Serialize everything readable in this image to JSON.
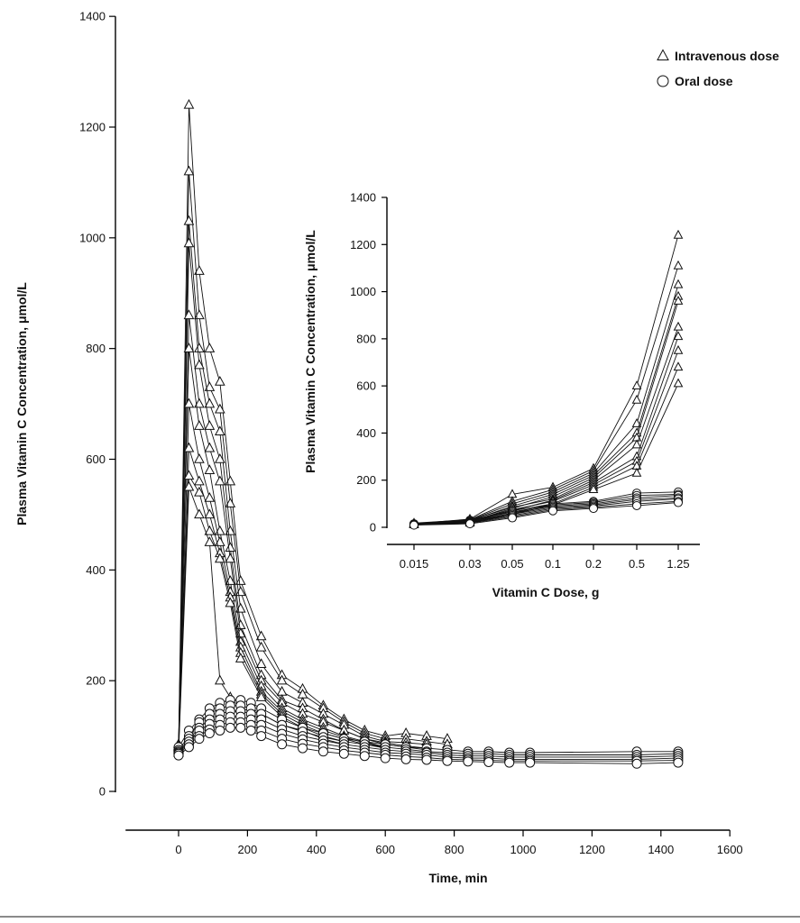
{
  "chart_data": [
    {
      "type": "line",
      "ylabel": "Plasma Vitamin C Concentration, μmol/L",
      "xlabel": "Time, min",
      "xlim": [
        -180,
        1600
      ],
      "ylim": [
        0,
        1400
      ],
      "x_ticks": [
        0,
        200,
        400,
        600,
        800,
        1000,
        1200,
        1400,
        1600
      ],
      "y_ticks": [
        0,
        200,
        400,
        600,
        800,
        1000,
        1200,
        1400
      ],
      "legend_position": "top-right",
      "legend": [
        {
          "marker": "triangle",
          "label": "Intravenous dose"
        },
        {
          "marker": "circle",
          "label": "Oral dose"
        }
      ],
      "series": [
        {
          "marker": "triangle",
          "x": [
            0,
            30,
            60,
            90,
            120,
            150,
            180,
            240,
            300,
            360,
            420,
            480,
            540,
            600,
            660,
            720,
            780
          ],
          "y": [
            80,
            1240,
            940,
            800,
            740,
            560,
            380,
            280,
            210,
            185,
            155,
            130,
            110,
            100,
            105,
            100,
            95
          ]
        },
        {
          "marker": "triangle",
          "x": [
            0,
            30,
            60,
            90,
            120,
            150,
            180,
            240,
            300,
            360,
            420,
            480,
            540,
            600,
            660,
            720,
            780
          ],
          "y": [
            75,
            1120,
            860,
            730,
            690,
            520,
            360,
            260,
            200,
            175,
            150,
            125,
            105,
            95,
            95,
            90,
            85
          ]
        },
        {
          "marker": "triangle",
          "x": [
            0,
            30,
            60,
            90,
            120,
            150,
            180,
            240,
            300,
            360,
            420,
            480,
            540,
            600,
            660,
            720
          ],
          "y": [
            80,
            1030,
            800,
            700,
            650,
            470,
            330,
            230,
            180,
            160,
            140,
            120,
            100,
            90,
            88,
            85
          ]
        },
        {
          "marker": "triangle",
          "x": [
            0,
            30,
            60,
            90,
            120,
            150,
            180,
            240,
            300,
            360,
            420,
            480,
            540,
            600,
            660,
            720
          ],
          "y": [
            70,
            990,
            770,
            660,
            600,
            440,
            300,
            210,
            165,
            150,
            130,
            110,
            95,
            88,
            82,
            78
          ]
        },
        {
          "marker": "triangle",
          "x": [
            0,
            30,
            60,
            90,
            120,
            150,
            180,
            240,
            300,
            360,
            420,
            480,
            540,
            600,
            660,
            720
          ],
          "y": [
            85,
            860,
            700,
            620,
            560,
            420,
            285,
            200,
            160,
            140,
            125,
            110,
            95,
            85,
            80,
            75
          ]
        },
        {
          "marker": "triangle",
          "x": [
            0,
            30,
            60,
            90,
            120,
            150,
            180,
            240,
            300,
            360,
            420,
            480,
            540,
            600
          ],
          "y": [
            78,
            800,
            660,
            580,
            470,
            380,
            270,
            190,
            150,
            130,
            115,
            100,
            90,
            80
          ]
        },
        {
          "marker": "triangle",
          "x": [
            0,
            30,
            60,
            90,
            120,
            150,
            180,
            240,
            300,
            360,
            420,
            480,
            540,
            600
          ],
          "y": [
            80,
            700,
            600,
            530,
            450,
            360,
            260,
            180,
            145,
            125,
            110,
            98,
            88,
            80
          ]
        },
        {
          "marker": "triangle",
          "x": [
            0,
            30,
            60,
            90,
            120,
            150,
            180,
            240,
            300,
            360,
            420,
            480,
            540,
            600
          ],
          "y": [
            75,
            620,
            560,
            500,
            430,
            350,
            250,
            175,
            140,
            120,
            105,
            95,
            85,
            78
          ]
        },
        {
          "marker": "triangle",
          "x": [
            0,
            30,
            60,
            90,
            120,
            150,
            180,
            240,
            300,
            360,
            420,
            480
          ],
          "y": [
            82,
            570,
            540,
            470,
            420,
            340,
            240,
            170,
            135,
            115,
            100,
            90
          ]
        },
        {
          "marker": "triangle",
          "x": [
            0,
            30,
            60,
            90,
            120,
            150,
            180,
            240,
            300,
            360,
            420,
            480
          ],
          "y": [
            70,
            550,
            500,
            450,
            200,
            170,
            150,
            140,
            120,
            110,
            95,
            85
          ]
        },
        {
          "marker": "circle",
          "x": [
            0,
            30,
            60,
            90,
            120,
            150,
            180,
            210,
            240,
            300,
            360,
            420,
            480,
            540,
            600,
            660,
            720,
            780,
            840,
            900,
            960,
            1020,
            1330,
            1450
          ],
          "y": [
            80,
            110,
            130,
            150,
            160,
            165,
            165,
            160,
            150,
            130,
            115,
            105,
            95,
            90,
            85,
            80,
            78,
            75,
            72,
            72,
            70,
            70,
            72,
            72
          ]
        },
        {
          "marker": "circle",
          "x": [
            0,
            30,
            60,
            90,
            120,
            150,
            180,
            210,
            240,
            300,
            360,
            420,
            480,
            540,
            600,
            660,
            720,
            780,
            840,
            900,
            960,
            1020,
            1330,
            1450
          ],
          "y": [
            75,
            100,
            125,
            140,
            150,
            155,
            155,
            150,
            140,
            120,
            108,
            98,
            90,
            85,
            80,
            76,
            72,
            70,
            68,
            68,
            66,
            66,
            66,
            68
          ]
        },
        {
          "marker": "circle",
          "x": [
            0,
            30,
            60,
            90,
            120,
            150,
            180,
            210,
            240,
            300,
            360,
            420,
            480,
            540,
            600,
            660,
            720,
            780,
            840,
            900,
            960,
            1020,
            1330,
            1450
          ],
          "y": [
            72,
            95,
            115,
            130,
            140,
            145,
            145,
            140,
            130,
            112,
            100,
            92,
            85,
            80,
            75,
            72,
            70,
            66,
            64,
            64,
            62,
            62,
            62,
            64
          ]
        },
        {
          "marker": "circle",
          "x": [
            0,
            30,
            60,
            90,
            120,
            150,
            180,
            210,
            240,
            300,
            360,
            420,
            480,
            540,
            600,
            660,
            720,
            780,
            840,
            900,
            960,
            1020,
            1330,
            1450
          ],
          "y": [
            70,
            90,
            110,
            122,
            130,
            135,
            135,
            130,
            120,
            104,
            94,
            86,
            80,
            75,
            70,
            68,
            66,
            62,
            60,
            60,
            58,
            58,
            58,
            60
          ]
        },
        {
          "marker": "circle",
          "x": [
            0,
            30,
            60,
            90,
            120,
            150,
            180,
            210,
            240,
            300,
            360,
            420,
            480,
            540,
            600,
            660,
            720,
            780,
            840,
            900,
            960,
            1020,
            1330,
            1450
          ],
          "y": [
            68,
            85,
            100,
            112,
            120,
            125,
            125,
            120,
            110,
            95,
            86,
            80,
            74,
            70,
            66,
            63,
            61,
            58,
            57,
            56,
            55,
            55,
            55,
            56
          ]
        },
        {
          "marker": "circle",
          "x": [
            0,
            30,
            60,
            90,
            120,
            150,
            180,
            210,
            240,
            300,
            360,
            420,
            480,
            540,
            600,
            660,
            720,
            780,
            840,
            900,
            960,
            1020,
            1330,
            1450
          ],
          "y": [
            65,
            80,
            95,
            105,
            110,
            115,
            115,
            110,
            100,
            85,
            78,
            72,
            68,
            64,
            60,
            58,
            57,
            55,
            54,
            53,
            52,
            52,
            50,
            52
          ]
        }
      ]
    },
    {
      "type": "line",
      "ylabel": "Plasma Vitamin C Concentration, μmol/L",
      "xlabel": "Vitamin C Dose, g",
      "categories": [
        "0.015",
        "0.03",
        "0.05",
        "0.1",
        "0.2",
        "0.5",
        "1.25"
      ],
      "ylim": [
        0,
        1400
      ],
      "y_ticks": [
        0,
        200,
        400,
        600,
        800,
        1000,
        1200,
        1400
      ],
      "series": [
        {
          "marker": "triangle",
          "values": [
            15,
            35,
            140,
            170,
            250,
            600,
            1240
          ]
        },
        {
          "marker": "triangle",
          "values": [
            18,
            32,
            110,
            160,
            240,
            540,
            1110
          ]
        },
        {
          "marker": "triangle",
          "values": [
            14,
            30,
            100,
            150,
            230,
            440,
            1030
          ]
        },
        {
          "marker": "triangle",
          "values": [
            16,
            28,
            90,
            140,
            220,
            400,
            980
          ]
        },
        {
          "marker": "triangle",
          "values": [
            12,
            25,
            80,
            130,
            210,
            380,
            960
          ]
        },
        {
          "marker": "triangle",
          "values": [
            15,
            30,
            85,
            120,
            200,
            350,
            850
          ]
        },
        {
          "marker": "triangle",
          "values": [
            13,
            22,
            70,
            115,
            190,
            300,
            810
          ]
        },
        {
          "marker": "triangle",
          "values": [
            14,
            26,
            75,
            110,
            180,
            280,
            750
          ]
        },
        {
          "marker": "triangle",
          "values": [
            12,
            20,
            60,
            100,
            170,
            260,
            680
          ]
        },
        {
          "marker": "triangle",
          "values": [
            11,
            18,
            55,
            95,
            160,
            230,
            610
          ]
        },
        {
          "marker": "circle",
          "values": [
            15,
            30,
            70,
            100,
            110,
            145,
            150
          ]
        },
        {
          "marker": "circle",
          "values": [
            14,
            28,
            65,
            95,
            105,
            135,
            140
          ]
        },
        {
          "marker": "circle",
          "values": [
            13,
            25,
            60,
            90,
            100,
            125,
            135
          ]
        },
        {
          "marker": "circle",
          "values": [
            12,
            22,
            55,
            85,
            95,
            118,
            125
          ]
        },
        {
          "marker": "circle",
          "values": [
            11,
            20,
            50,
            80,
            90,
            110,
            120
          ]
        },
        {
          "marker": "circle",
          "values": [
            10,
            18,
            45,
            75,
            85,
            100,
            110
          ]
        },
        {
          "marker": "circle",
          "values": [
            9,
            15,
            40,
            70,
            80,
            92,
            105
          ]
        }
      ]
    }
  ]
}
